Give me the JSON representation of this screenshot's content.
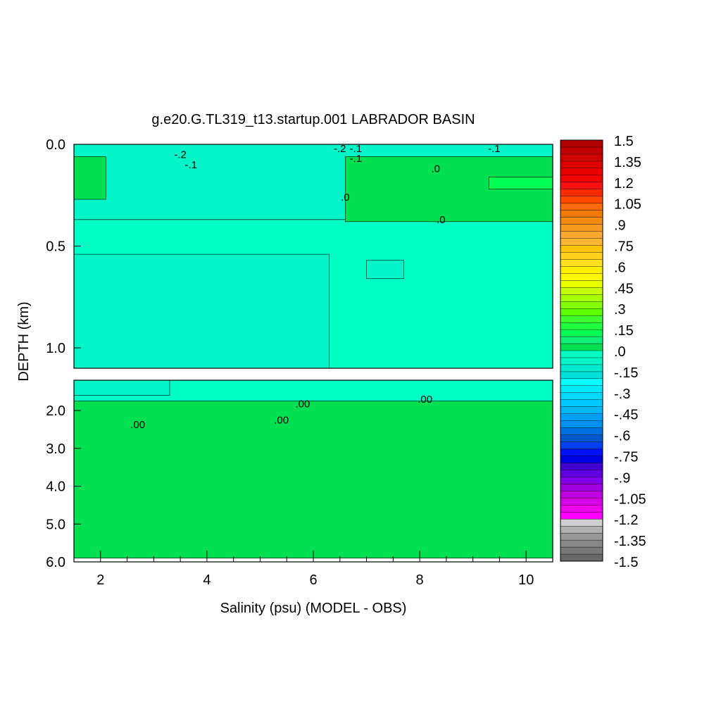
{
  "colors": {
    "green_main": "#00ff55",
    "green_light": "#10ef78",
    "green_bright": "#00e050",
    "cyan": "#00ffc4",
    "aqua": "#00e8c8",
    "teal": "#12d6b8"
  },
  "chart_data": {
    "type": "heatmap",
    "title": "g.e20.G.TL319_t13.startup.001 LABRADOR BASIN",
    "xlabel": "Salinity (psu) (MODEL - OBS)",
    "ylabel": "DEPTH (km)",
    "xlim": [
      1.5,
      10.5
    ],
    "x_ticks": [
      "2",
      "4",
      "6",
      "8",
      "10"
    ],
    "panels": [
      {
        "name": "upper",
        "ylim": [
          0.0,
          1.1
        ],
        "y_ticks": [
          "0.0",
          "0.5",
          "1.0"
        ],
        "regions": [
          {
            "value": -0.15,
            "x": [
              1.5,
              10.5
            ],
            "y": [
              0.0,
              0.04
            ]
          },
          {
            "value": -0.1,
            "x": [
              2.5,
              6.5
            ],
            "y": [
              0.0,
              0.1
            ]
          },
          {
            "value": -0.05,
            "x": [
              1.5,
              10.5
            ],
            "y": [
              0.0,
              0.37
            ]
          },
          {
            "value": 0.0,
            "x": [
              1.5,
              10.5
            ],
            "y": [
              0.37,
              1.1
            ]
          },
          {
            "value": -0.05,
            "x": [
              1.5,
              6.3
            ],
            "y": [
              0.54,
              1.1
            ]
          },
          {
            "value": -0.05,
            "x": [
              7.0,
              7.7
            ],
            "y": [
              0.57,
              0.66
            ]
          },
          {
            "value": 0.05,
            "x": [
              6.6,
              10.5
            ],
            "y": [
              0.06,
              0.38
            ]
          },
          {
            "value": 0.1,
            "x": [
              9.3,
              10.5
            ],
            "y": [
              0.16,
              0.22
            ]
          },
          {
            "value": 0.05,
            "x": [
              1.5,
              2.1
            ],
            "y": [
              0.06,
              0.27
            ]
          }
        ],
        "contour_labels": [
          {
            "text": "-.2",
            "x": 3.5,
            "y": 0.05
          },
          {
            "text": "-.1",
            "x": 3.7,
            "y": 0.1
          },
          {
            "text": "-.2",
            "x": 6.5,
            "y": 0.02
          },
          {
            "text": "-.1",
            "x": 6.8,
            "y": 0.02
          },
          {
            "text": "-.1",
            "x": 6.8,
            "y": 0.07
          },
          {
            "text": "-.1",
            "x": 9.4,
            "y": 0.02
          },
          {
            "text": ".0",
            "x": 8.3,
            "y": 0.12
          },
          {
            "text": ".0",
            "x": 6.6,
            "y": 0.26
          },
          {
            "text": ".0",
            "x": 8.4,
            "y": 0.37
          }
        ]
      },
      {
        "name": "lower",
        "ylim": [
          1.2,
          6.0
        ],
        "y_ticks": [
          "2.0",
          "3.0",
          "4.0",
          "5.0",
          "6.0"
        ],
        "regions": [
          {
            "value": 0.0,
            "x": [
              1.5,
              10.5
            ],
            "y": [
              1.2,
              2.3
            ]
          },
          {
            "value": 0.05,
            "x": [
              1.5,
              10.5
            ],
            "y": [
              1.75,
              5.9
            ]
          },
          {
            "value": -0.05,
            "x": [
              1.5,
              3.3
            ],
            "y": [
              1.2,
              1.6
            ]
          }
        ],
        "contour_labels": [
          {
            "text": ".00",
            "x": 2.7,
            "y": 2.37
          },
          {
            "text": ".00",
            "x": 5.4,
            "y": 2.25
          },
          {
            "text": ".00",
            "x": 5.8,
            "y": 1.82
          },
          {
            "text": ".00",
            "x": 8.1,
            "y": 1.7
          }
        ]
      }
    ],
    "colorbar": {
      "min": -1.5,
      "max": 1.5,
      "labels": [
        "1.5",
        "1.35",
        "1.2",
        "1.05",
        ".9",
        ".75",
        ".6",
        ".45",
        ".3",
        ".15",
        ".0",
        "-.15",
        "-.3",
        "-.45",
        "-.6",
        "-.75",
        "-.9",
        "-1.05",
        "-1.2",
        "-1.35",
        "-1.5"
      ],
      "colors": [
        "#b30000",
        "#c20000",
        "#d00000",
        "#de0000",
        "#ea0000",
        "#f80000",
        "#ff1010",
        "#ff2a00",
        "#ff4a00",
        "#ff6a00",
        "#f07a00",
        "#f58a10",
        "#f79a20",
        "#fba830",
        "#fdb630",
        "#ffc400",
        "#ffd320",
        "#ffe020",
        "#ffee00",
        "#fff800",
        "#e8ff00",
        "#c8ff00",
        "#a8ff00",
        "#88ff00",
        "#60ff00",
        "#40ff30",
        "#20ff40",
        "#00ff55",
        "#10ef78",
        "#00e050",
        "#00ffc4",
        "#00f5c8",
        "#00ead0",
        "#00e0d8",
        "#00ffff",
        "#00eaff",
        "#00d8ff",
        "#00c8ff",
        "#00b6ff",
        "#00a0ff",
        "#0090f0",
        "#0070e0",
        "#0058d0",
        "#0040f0",
        "#0010ff",
        "#0000e0",
        "#4000d0",
        "#6000e0",
        "#8000f0",
        "#a000e0",
        "#c000e0",
        "#d800e8",
        "#f000f0",
        "#ff00ff",
        "#d0d0d0",
        "#b0b0b0",
        "#989898",
        "#888888",
        "#787878",
        "#686868"
      ]
    }
  }
}
